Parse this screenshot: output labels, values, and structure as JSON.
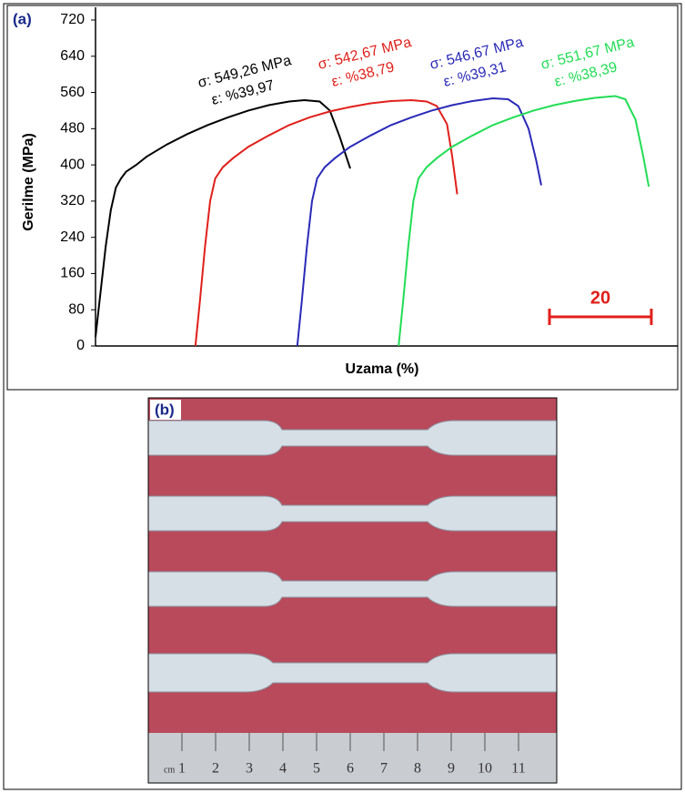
{
  "chart_data": {
    "type": "line",
    "panel_label": "(a)",
    "x_label": "Uzama (%)",
    "y_label": "Gerilme (MPa)",
    "xlim": [
      0,
      114
    ],
    "ylim": [
      0,
      720
    ],
    "yticks": [
      0,
      80,
      160,
      240,
      320,
      400,
      480,
      560,
      640,
      720
    ],
    "scale_bar": 20,
    "series": [
      {
        "name": "σ: 549,26 MPa",
        "annotation": "ε: %39,97",
        "color": "#000000",
        "x": [
          0,
          1,
          2,
          3,
          4,
          5,
          6,
          8,
          10,
          14,
          18,
          22,
          26,
          30,
          34,
          38,
          41,
          44,
          46,
          48,
          50
        ],
        "values": [
          20,
          120,
          220,
          300,
          350,
          370,
          385,
          400,
          418,
          445,
          468,
          488,
          505,
          520,
          532,
          540,
          543,
          540,
          520,
          460,
          392
        ]
      },
      {
        "name": "σ: 542,67 MPa",
        "annotation": "ε: %38,79",
        "color": "#e0201b",
        "x": [
          19.6,
          20.5,
          21.5,
          22.5,
          23.5,
          25,
          27,
          30,
          34,
          38,
          42,
          46,
          50,
          54,
          58,
          62,
          65,
          67,
          69,
          70,
          71
        ],
        "values": [
          0,
          100,
          220,
          320,
          370,
          395,
          415,
          440,
          465,
          488,
          505,
          518,
          528,
          536,
          541,
          543,
          540,
          530,
          490,
          420,
          335
        ]
      },
      {
        "name": "σ: 546,67 MPa",
        "annotation": "ε: %39,31",
        "color": "#2a2ab8",
        "x": [
          39.6,
          40.5,
          41.5,
          42.5,
          43.5,
          45,
          47,
          50,
          54,
          58,
          62,
          66,
          70,
          74,
          78,
          81,
          83,
          85,
          86.5,
          87.5
        ],
        "values": [
          0,
          100,
          220,
          320,
          370,
          395,
          415,
          440,
          465,
          488,
          505,
          520,
          532,
          541,
          547,
          545,
          530,
          480,
          410,
          355
        ]
      },
      {
        "name": "σ: 551,67 MPa",
        "annotation": "ε: %38,39",
        "color": "#22dd55",
        "x": [
          59.5,
          60.4,
          61.4,
          62.4,
          63.4,
          65,
          67,
          70,
          74,
          78,
          82,
          86,
          90,
          94,
          98,
          102,
          104,
          106,
          107.5,
          108.6
        ],
        "values": [
          0,
          100,
          220,
          320,
          370,
          395,
          415,
          440,
          465,
          488,
          505,
          520,
          532,
          541,
          548,
          552,
          545,
          500,
          420,
          352
        ]
      }
    ]
  },
  "photo": {
    "panel_label": "(b)",
    "ruler_unit": "cm",
    "ruler_numbers": [
      "1",
      "2",
      "3",
      "4",
      "5",
      "6",
      "7",
      "8",
      "9",
      "10",
      "11"
    ]
  }
}
